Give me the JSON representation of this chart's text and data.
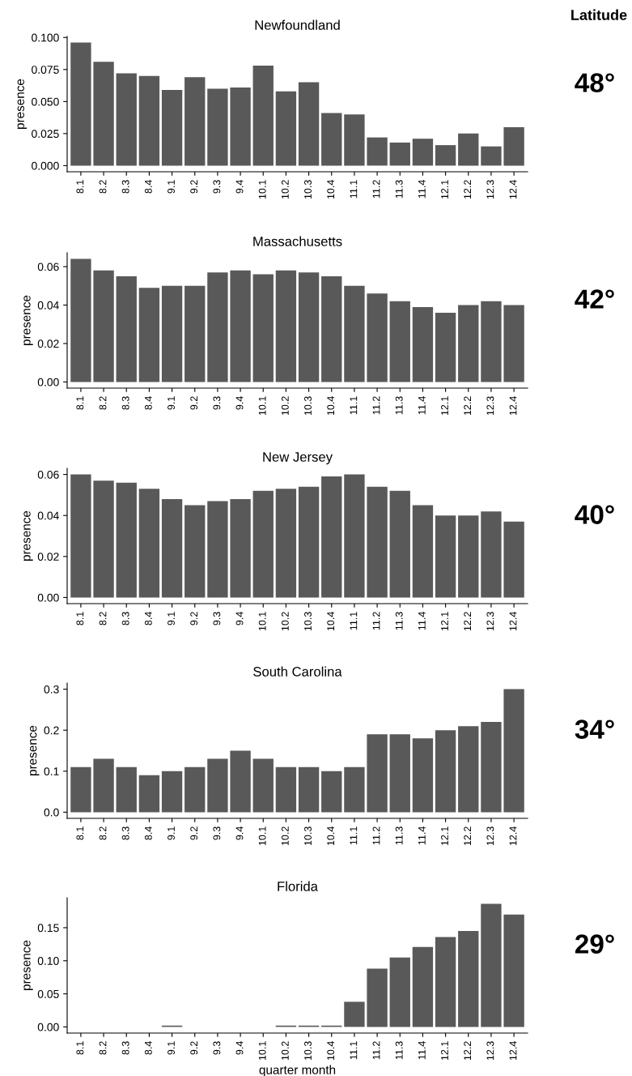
{
  "chart_data": [
    {
      "type": "bar",
      "title": "Newfoundland",
      "ylabel": "presence",
      "annotations": [
        "Latitude",
        "48°"
      ],
      "color": "#595959",
      "categories": [
        "8.1",
        "8.2",
        "8.3",
        "8.4",
        "9.1",
        "9.2",
        "9.3",
        "9.4",
        "10.1",
        "10.2",
        "10.3",
        "10.4",
        "11.1",
        "11.2",
        "11.3",
        "11.4",
        "12.1",
        "12.2",
        "12.3",
        "12.4"
      ],
      "values": [
        0.096,
        0.081,
        0.072,
        0.07,
        0.059,
        0.069,
        0.06,
        0.061,
        0.078,
        0.058,
        0.065,
        0.041,
        0.04,
        0.022,
        0.018,
        0.021,
        0.016,
        0.025,
        0.015,
        0.03
      ],
      "ylim": [
        -0.0048,
        0.1008
      ],
      "yticks": [
        {
          "value": 0,
          "label": "0.000"
        },
        {
          "value": 0.025,
          "label": "0.025"
        },
        {
          "value": 0.05,
          "label": "0.050"
        },
        {
          "value": 0.075,
          "label": "0.075"
        },
        {
          "value": 0.1,
          "label": "0.100"
        }
      ],
      "grid": false
    },
    {
      "type": "bar",
      "title": "Massachusetts",
      "ylabel": "presence",
      "annotations": [
        "42°"
      ],
      "color": "#595959",
      "categories": [
        "8.1",
        "8.2",
        "8.3",
        "8.4",
        "9.1",
        "9.2",
        "9.3",
        "9.4",
        "10.1",
        "10.2",
        "10.3",
        "10.4",
        "11.1",
        "11.2",
        "11.3",
        "11.4",
        "12.1",
        "12.2",
        "12.3",
        "12.4"
      ],
      "values": [
        0.064,
        0.058,
        0.055,
        0.049,
        0.05,
        0.05,
        0.057,
        0.058,
        0.056,
        0.058,
        0.057,
        0.055,
        0.05,
        0.046,
        0.042,
        0.039,
        0.036,
        0.04,
        0.042,
        0.04
      ],
      "ylim": [
        -0.0032,
        0.0672
      ],
      "yticks": [
        {
          "value": 0,
          "label": "0.00"
        },
        {
          "value": 0.02,
          "label": "0.02"
        },
        {
          "value": 0.04,
          "label": "0.04"
        },
        {
          "value": 0.06,
          "label": "0.06"
        }
      ],
      "grid": false
    },
    {
      "type": "bar",
      "title": "New Jersey",
      "ylabel": "presence",
      "annotations": [
        "40°"
      ],
      "color": "#595959",
      "categories": [
        "8.1",
        "8.2",
        "8.3",
        "8.4",
        "9.1",
        "9.2",
        "9.3",
        "9.4",
        "10.1",
        "10.2",
        "10.3",
        "10.4",
        "11.1",
        "11.2",
        "11.3",
        "11.4",
        "12.1",
        "12.2",
        "12.3",
        "12.4"
      ],
      "values": [
        0.06,
        0.057,
        0.056,
        0.053,
        0.048,
        0.045,
        0.047,
        0.048,
        0.052,
        0.053,
        0.054,
        0.059,
        0.06,
        0.054,
        0.052,
        0.045,
        0.04,
        0.04,
        0.042,
        0.037
      ],
      "ylim": [
        -0.003,
        0.063
      ],
      "yticks": [
        {
          "value": 0,
          "label": "0.00"
        },
        {
          "value": 0.02,
          "label": "0.02"
        },
        {
          "value": 0.04,
          "label": "0.04"
        },
        {
          "value": 0.06,
          "label": "0.06"
        }
      ],
      "grid": false
    },
    {
      "type": "bar",
      "title": "South Carolina",
      "ylabel": "presence",
      "annotations": [
        "34°"
      ],
      "color": "#595959",
      "categories": [
        "8.1",
        "8.2",
        "8.3",
        "8.4",
        "9.1",
        "9.2",
        "9.3",
        "9.4",
        "10.1",
        "10.2",
        "10.3",
        "10.4",
        "11.1",
        "11.2",
        "11.3",
        "11.4",
        "12.1",
        "12.2",
        "12.3",
        "12.4"
      ],
      "values": [
        0.11,
        0.13,
        0.11,
        0.09,
        0.1,
        0.11,
        0.13,
        0.15,
        0.13,
        0.11,
        0.11,
        0.1,
        0.11,
        0.19,
        0.19,
        0.18,
        0.2,
        0.21,
        0.22,
        0.3
      ],
      "ylim": [
        -0.015,
        0.315
      ],
      "yticks": [
        {
          "value": 0,
          "label": "0.0"
        },
        {
          "value": 0.1,
          "label": "0.1"
        },
        {
          "value": 0.2,
          "label": "0.2"
        },
        {
          "value": 0.3,
          "label": "0.3"
        }
      ],
      "grid": false
    },
    {
      "type": "bar",
      "title": "Florida",
      "ylabel": "presence",
      "xlabel": "quarter month",
      "annotations": [
        "29°"
      ],
      "color": "#595959",
      "categories": [
        "8.1",
        "8.2",
        "8.3",
        "8.4",
        "9.1",
        "9.2",
        "9.3",
        "9.4",
        "10.1",
        "10.2",
        "10.3",
        "10.4",
        "11.1",
        "11.2",
        "11.3",
        "11.4",
        "12.1",
        "12.2",
        "12.3",
        "12.4"
      ],
      "values": [
        0,
        0,
        0,
        0,
        0.002,
        0,
        0,
        0,
        0,
        0.002,
        0.002,
        0.002,
        0.038,
        0.088,
        0.105,
        0.121,
        0.136,
        0.145,
        0.186,
        0.17
      ],
      "ylim": [
        -0.0093,
        0.1953
      ],
      "yticks": [
        {
          "value": 0,
          "label": "0.00"
        },
        {
          "value": 0.05,
          "label": "0.05"
        },
        {
          "value": 0.1,
          "label": "0.10"
        },
        {
          "value": 0.15,
          "label": "0.15"
        }
      ],
      "grid": false
    }
  ]
}
